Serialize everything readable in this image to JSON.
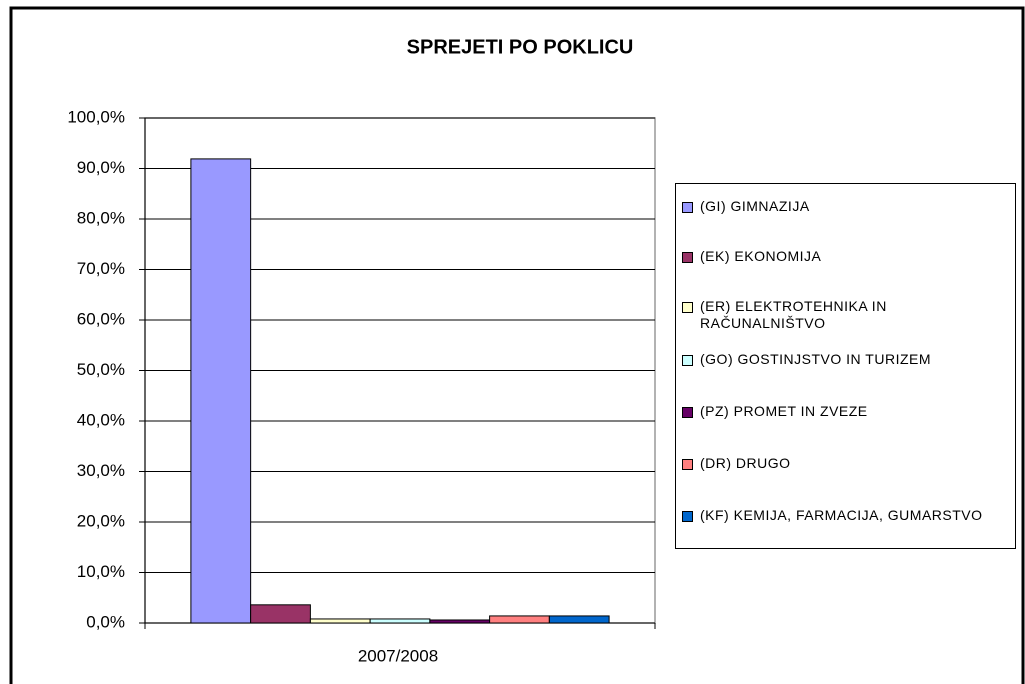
{
  "chart_data": {
    "type": "bar",
    "title": "SPREJETI PO POKLICU",
    "categories": [
      "2007/2008"
    ],
    "series": [
      {
        "name": "(GI) GIMNAZIJA",
        "color": "#9999ff",
        "values": [
          91.9
        ]
      },
      {
        "name": "(EK) EKONOMIJA",
        "color": "#993366",
        "values": [
          3.6
        ]
      },
      {
        "name": "(ER) ELEKTROTEHNIKA IN RAČUNALNIŠTVO",
        "color": "#ffffcc",
        "values": [
          0.8
        ]
      },
      {
        "name": "(GO) GOSTINJSTVO IN TURIZEM",
        "color": "#ccffff",
        "values": [
          0.8
        ]
      },
      {
        "name": "(PZ) PROMET IN ZVEZE",
        "color": "#660066",
        "values": [
          0.6
        ]
      },
      {
        "name": "(DR) DRUGO",
        "color": "#ff8080",
        "values": [
          1.4
        ]
      },
      {
        "name": "(KF) KEMIJA, FARMACIJA, GUMARSTVO",
        "color": "#0066cc",
        "values": [
          1.4
        ]
      }
    ],
    "ylim": [
      0,
      100
    ],
    "yticks": [
      {
        "value": 0,
        "label": "0,0%"
      },
      {
        "value": 10,
        "label": "10,0%"
      },
      {
        "value": 20,
        "label": "20,0%"
      },
      {
        "value": 30,
        "label": "30,0%"
      },
      {
        "value": 40,
        "label": "40,0%"
      },
      {
        "value": 50,
        "label": "50,0%"
      },
      {
        "value": 60,
        "label": "60,0%"
      },
      {
        "value": 70,
        "label": "70,0%"
      },
      {
        "value": 80,
        "label": "80,0%"
      },
      {
        "value": 90,
        "label": "90,0%"
      },
      {
        "value": 100,
        "label": "100,0%"
      }
    ],
    "grid": true,
    "legend": "right"
  }
}
